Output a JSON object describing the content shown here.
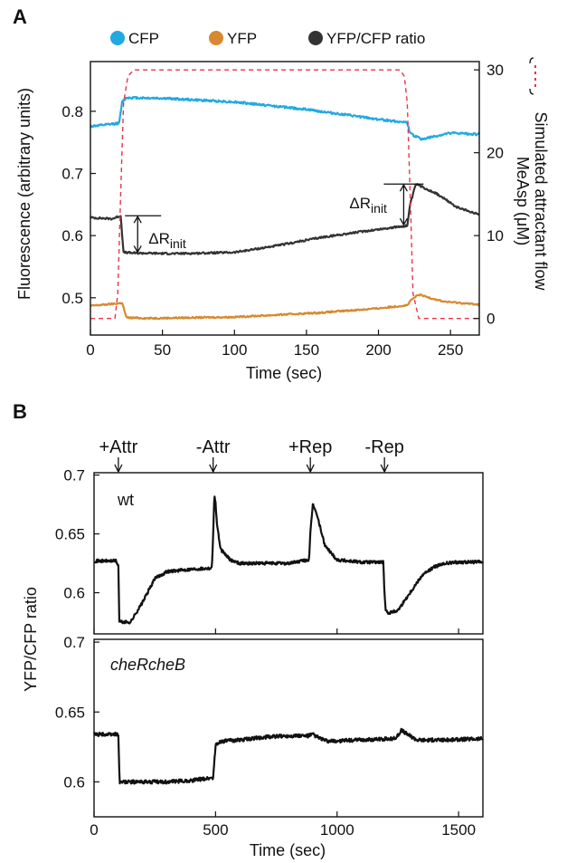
{
  "chart_data": [
    {
      "panel": "A",
      "type": "line",
      "xlabel": "Time (sec)",
      "ylabel": "Fluorescence (arbitrary units)",
      "y2label_line1": "Simulated attractant flow",
      "y2label_line2": "MeAsp (μM)",
      "xlim": [
        0,
        270
      ],
      "ylim": [
        0.44,
        0.88
      ],
      "y2lim": [
        -2,
        31
      ],
      "xticks": [
        0,
        50,
        100,
        150,
        200,
        250
      ],
      "yticks": [
        0.5,
        0.6,
        0.7,
        0.8
      ],
      "y2ticks": [
        0,
        10,
        20,
        30
      ],
      "legend_position": "top",
      "legend": [
        {
          "label": "CFP",
          "color": "#22a9e1"
        },
        {
          "label": "YFP",
          "color": "#d7892f"
        },
        {
          "label": "YFP/CFP ratio",
          "color": "#333333"
        }
      ],
      "y2_legend_color": "#e8344c",
      "annotations": [
        {
          "label": "ΔR",
          "sub": "init",
          "x": 22,
          "y_top": 0.632,
          "y_bottom": 0.572
        },
        {
          "label": "ΔR",
          "sub": "init",
          "x": 217,
          "y_top": 0.683,
          "y_bottom": 0.616
        }
      ],
      "series": [
        {
          "name": "CFP",
          "color": "#22a9e1",
          "axis": "left",
          "x": [
            0,
            10,
            20,
            22,
            25,
            50,
            100,
            150,
            200,
            220,
            222,
            230,
            250,
            270
          ],
          "y": [
            0.776,
            0.778,
            0.781,
            0.815,
            0.822,
            0.821,
            0.815,
            0.803,
            0.787,
            0.782,
            0.764,
            0.755,
            0.765,
            0.763
          ]
        },
        {
          "name": "YFP/CFP ratio",
          "color": "#333333",
          "axis": "left",
          "x": [
            0,
            15,
            21,
            23,
            30,
            60,
            100,
            130,
            160,
            190,
            220,
            222,
            226,
            240,
            255,
            270
          ],
          "y": [
            0.629,
            0.627,
            0.632,
            0.573,
            0.572,
            0.571,
            0.573,
            0.584,
            0.597,
            0.607,
            0.616,
            0.65,
            0.683,
            0.668,
            0.645,
            0.634
          ]
        },
        {
          "name": "YFP",
          "color": "#d7892f",
          "axis": "left",
          "x": [
            0,
            20,
            22,
            25,
            40,
            100,
            160,
            200,
            220,
            223,
            228,
            245,
            270
          ],
          "y": [
            0.487,
            0.491,
            0.492,
            0.468,
            0.467,
            0.469,
            0.476,
            0.483,
            0.488,
            0.497,
            0.505,
            0.494,
            0.489
          ]
        },
        {
          "name": "Simulated attractant flow",
          "color": "#e8344c",
          "axis": "right",
          "dashed": true,
          "x": [
            0,
            17,
            19,
            21,
            23,
            26,
            30,
            215,
            218,
            220,
            222,
            224,
            228,
            270
          ],
          "y": [
            0,
            0,
            3,
            15,
            26,
            29.2,
            30,
            30,
            29.2,
            26,
            15,
            3,
            0,
            0
          ]
        }
      ]
    },
    {
      "panel": "B",
      "type": "line",
      "xlabel": "Time (sec)",
      "ylabel": "YFP/CFP  ratio",
      "xlim": [
        0,
        1600
      ],
      "xticks": [
        0,
        500,
        1000,
        1500
      ],
      "stimuli": [
        {
          "label": "+Attr",
          "x": 100
        },
        {
          "label": "-Attr",
          "x": 490
        },
        {
          "label": "+Rep",
          "x": 890
        },
        {
          "label": "-Rep",
          "x": 1195
        }
      ],
      "subplots": [
        {
          "label": "wt",
          "italic": false,
          "ylim": [
            0.565,
            0.702
          ],
          "yticks": [
            0.6,
            0.65,
            0.7
          ],
          "x": [
            0,
            90,
            100,
            104,
            115,
            150,
            200,
            250,
            300,
            400,
            485,
            490,
            495,
            500,
            505,
            520,
            560,
            600,
            700,
            800,
            885,
            890,
            900,
            910,
            925,
            950,
            1000,
            1100,
            1190,
            1195,
            1200,
            1215,
            1250,
            1300,
            1350,
            1400,
            1450,
            1500,
            1600
          ],
          "y": [
            0.627,
            0.627,
            0.623,
            0.576,
            0.575,
            0.575,
            0.592,
            0.612,
            0.618,
            0.62,
            0.621,
            0.65,
            0.682,
            0.677,
            0.66,
            0.637,
            0.628,
            0.625,
            0.625,
            0.625,
            0.628,
            0.65,
            0.675,
            0.671,
            0.66,
            0.64,
            0.628,
            0.626,
            0.626,
            0.6,
            0.584,
            0.583,
            0.585,
            0.6,
            0.615,
            0.622,
            0.625,
            0.626,
            0.626
          ]
        },
        {
          "label": "cheRcheB",
          "italic": true,
          "ylim": [
            0.575,
            0.702
          ],
          "yticks": [
            0.6,
            0.65,
            0.7
          ],
          "x": [
            0,
            100,
            105,
            115,
            200,
            300,
            400,
            490,
            500,
            520,
            600,
            700,
            800,
            880,
            900,
            920,
            960,
            1100,
            1240,
            1265,
            1290,
            1330,
            1450,
            1600
          ],
          "y": [
            0.634,
            0.634,
            0.6,
            0.6,
            0.6,
            0.6,
            0.601,
            0.603,
            0.626,
            0.629,
            0.63,
            0.632,
            0.633,
            0.633,
            0.634,
            0.632,
            0.629,
            0.63,
            0.631,
            0.637,
            0.634,
            0.63,
            0.63,
            0.631
          ]
        }
      ]
    }
  ]
}
